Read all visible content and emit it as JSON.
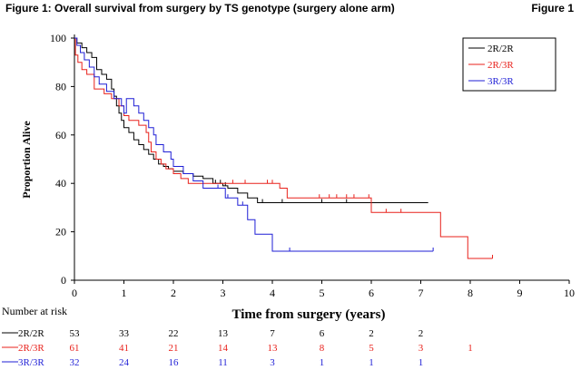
{
  "header": {
    "title": "Figure 1: Overall survival from surgery by TS genotype (surgery alone arm)",
    "figure_label": "Figure 1"
  },
  "chart_data": {
    "type": "line",
    "step": true,
    "title": "Figure 1: Overall survival from surgery by TS genotype (surgery alone arm)",
    "xlabel": "Time from  surgery (years)",
    "ylabel": "Proportion Alive",
    "xlim": [
      0,
      10
    ],
    "ylim": [
      0,
      100
    ],
    "xticks": [
      "0",
      "1",
      "2",
      "3",
      "4",
      "5",
      "6",
      "7",
      "8",
      "9",
      "10"
    ],
    "yticks": [
      "0",
      "20",
      "40",
      "60",
      "80",
      "100"
    ],
    "legend_position": "top-right",
    "series": [
      {
        "name": "2R/2R",
        "color": "#000000",
        "x": [
          0,
          0.05,
          0.15,
          0.25,
          0.35,
          0.45,
          0.55,
          0.65,
          0.75,
          0.8,
          0.85,
          0.9,
          0.95,
          1.0,
          1.1,
          1.2,
          1.3,
          1.4,
          1.5,
          1.6,
          1.7,
          1.8,
          1.9,
          2.0,
          2.2,
          2.4,
          2.6,
          2.8,
          3.0,
          3.1,
          3.3,
          3.5,
          3.7,
          4.0,
          5.0,
          6.0,
          7.15
        ],
        "y": [
          100,
          98,
          96,
          94,
          92,
          87,
          85,
          83,
          79,
          76,
          72,
          69,
          66,
          63,
          61,
          58,
          56,
          54,
          52,
          50,
          48,
          47,
          46,
          45,
          44,
          43,
          42,
          40,
          39,
          38,
          36,
          34,
          32,
          32,
          32,
          32,
          32
        ],
        "censor_x": [
          2.85,
          2.95,
          3.05,
          3.8,
          4.2,
          5.0,
          5.5
        ]
      },
      {
        "name": "2R/3R",
        "color": "#e8211b",
        "x": [
          0,
          0.02,
          0.07,
          0.15,
          0.25,
          0.4,
          0.6,
          0.75,
          0.9,
          1.0,
          1.1,
          1.3,
          1.45,
          1.5,
          1.55,
          1.65,
          1.75,
          1.85,
          2.0,
          2.15,
          2.3,
          2.9,
          3.5,
          4.0,
          4.15,
          4.3,
          5.0,
          5.9,
          6.0,
          7.0,
          7.4,
          7.95,
          8.45
        ],
        "y": [
          100,
          93,
          90,
          87,
          85,
          79,
          77,
          75,
          72,
          68,
          66,
          64,
          61,
          57,
          53,
          50,
          48,
          46,
          44,
          42,
          40,
          40,
          40,
          40,
          38,
          34,
          34,
          34,
          28,
          28,
          18,
          9,
          9
        ],
        "censor_x": [
          3.2,
          3.45,
          3.9,
          4.0,
          4.95,
          5.15,
          5.3,
          5.5,
          5.65,
          5.95,
          6.3,
          6.6,
          8.45
        ]
      },
      {
        "name": "3R/3R",
        "color": "#1f1fd6",
        "x": [
          0,
          0.05,
          0.12,
          0.2,
          0.3,
          0.4,
          0.5,
          0.65,
          0.8,
          0.95,
          1.0,
          1.05,
          1.2,
          1.3,
          1.4,
          1.5,
          1.6,
          1.65,
          1.8,
          1.95,
          2.0,
          2.2,
          2.4,
          2.6,
          2.85,
          3.05,
          3.3,
          3.5,
          3.65,
          3.85,
          4.0,
          5.0,
          6.0,
          7.25
        ],
        "y": [
          100,
          97,
          94,
          91,
          88,
          84,
          81,
          78,
          75,
          72,
          69,
          75,
          72,
          69,
          66,
          63,
          60,
          56,
          53,
          50,
          47,
          44,
          41,
          38,
          38,
          34,
          31,
          25,
          19,
          19,
          12,
          12,
          12,
          12
        ],
        "censor_x": [
          2.9,
          3.1,
          3.4,
          4.35,
          7.25
        ]
      }
    ],
    "risk_table": {
      "title": "Number at risk",
      "rows": [
        {
          "name": "2R/2R",
          "color": "#000000",
          "values": [
            "53",
            "33",
            "22",
            "13",
            "7",
            "6",
            "2",
            "2"
          ]
        },
        {
          "name": "2R/3R",
          "color": "#e8211b",
          "values": [
            "61",
            "41",
            "21",
            "14",
            "13",
            "8",
            "5",
            "3",
            "1"
          ]
        },
        {
          "name": "3R/3R",
          "color": "#1f1fd6",
          "values": [
            "32",
            "24",
            "16",
            "11",
            "3",
            "1",
            "1",
            "1"
          ]
        }
      ]
    }
  }
}
